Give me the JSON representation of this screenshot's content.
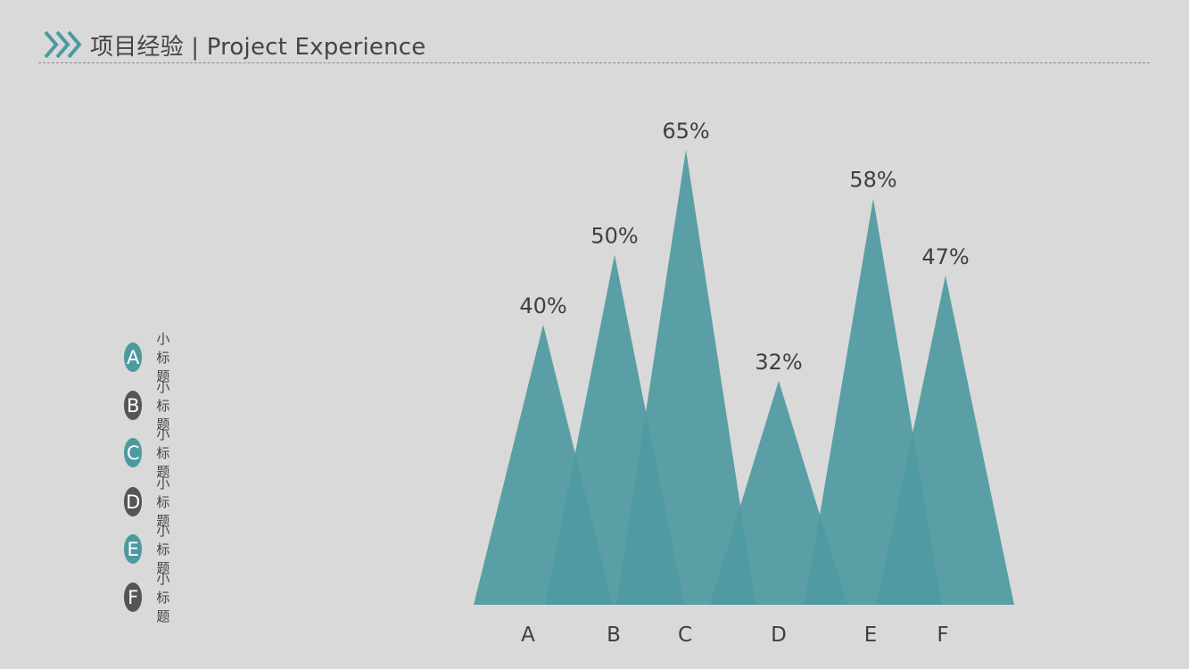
{
  "header": {
    "title": "项目经验 | Project Experience"
  },
  "legend": {
    "items": [
      {
        "letter": "A",
        "label": "小标题",
        "color": "#4a9aa0"
      },
      {
        "letter": "B",
        "label": "小标题",
        "color": "#555555"
      },
      {
        "letter": "C",
        "label": "小标题",
        "color": "#4a9aa0"
      },
      {
        "letter": "D",
        "label": "小标题",
        "color": "#555555"
      },
      {
        "letter": "E",
        "label": "小标题",
        "color": "#4a9aa0"
      },
      {
        "letter": "F",
        "label": "小标题",
        "color": "#555555"
      }
    ]
  },
  "colors": {
    "accent": "#4a9aa0",
    "triangle": "#4e9aa1",
    "text": "#3f3f3f",
    "background": "#d9d9d9"
  },
  "chart_data": {
    "type": "bar",
    "categories": [
      "A",
      "B",
      "C",
      "D",
      "E",
      "F"
    ],
    "values": [
      40,
      50,
      65,
      32,
      58,
      47
    ],
    "value_labels": [
      "40%",
      "50%",
      "65%",
      "32%",
      "58%",
      "47%"
    ],
    "title": "",
    "xlabel": "",
    "ylabel": "",
    "ylim": [
      0,
      65
    ],
    "grid": false,
    "mark_shape": "triangle"
  }
}
